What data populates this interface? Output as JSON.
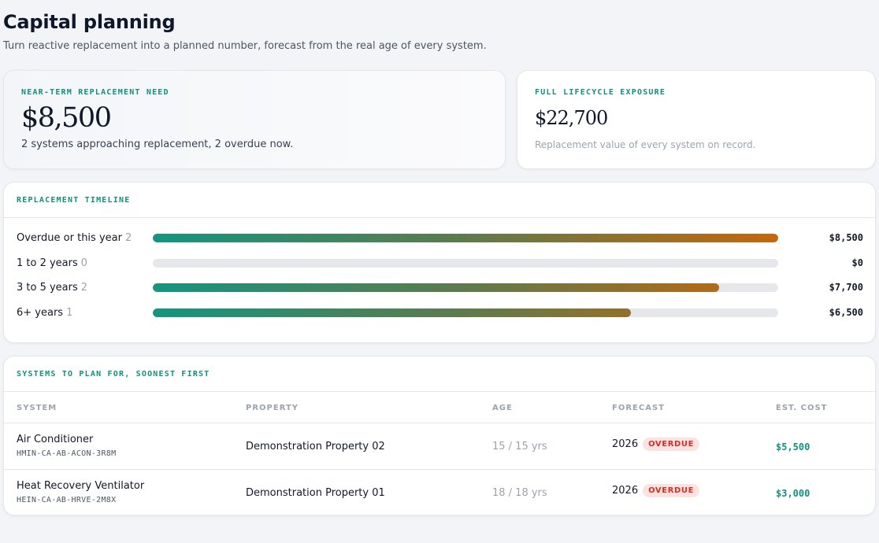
{
  "page": {
    "title": "Capital planning",
    "subtitle": "Turn reactive replacement into a planned number, forecast from the real age of every system."
  },
  "kpis": {
    "near_term": {
      "label": "NEAR-TERM REPLACEMENT NEED",
      "value": "$8,500",
      "caption": "2 systems approaching replacement, 2 overdue now."
    },
    "lifecycle": {
      "label": "FULL LIFECYCLE EXPOSURE",
      "value": "$22,700",
      "caption": "Replacement value of every system on record."
    }
  },
  "timeline": {
    "title": "REPLACEMENT TIMELINE",
    "rows": [
      {
        "label": "Overdue or this year",
        "count": "2",
        "amount": "$8,500",
        "fill_fraction": 1.0
      },
      {
        "label": "1 to 2 years",
        "count": "0",
        "amount": "$0",
        "fill_fraction": 0.0
      },
      {
        "label": "3 to 5 years",
        "count": "2",
        "amount": "$7,700",
        "fill_fraction": 0.906
      },
      {
        "label": "6+ years",
        "count": "1",
        "amount": "$6,500",
        "fill_fraction": 0.765
      }
    ]
  },
  "systems": {
    "title": "SYSTEMS TO PLAN FOR, SOONEST FIRST",
    "columns": {
      "system": "SYSTEM",
      "property": "PROPERTY",
      "age": "AGE",
      "forecast": "FORECAST",
      "cost": "EST. COST"
    },
    "rows": [
      {
        "name": "Air Conditioner",
        "code": "HMIN-CA-AB-ACON-3R8M",
        "property": "Demonstration Property 02",
        "age": "15 / 15 yrs",
        "forecast_year": "2026",
        "badge": "OVERDUE",
        "cost": "$5,500"
      },
      {
        "name": "Heat Recovery Ventilator",
        "code": "HEIN-CA-AB-HRVE-2M8X",
        "property": "Demonstration Property 01",
        "age": "18 / 18 yrs",
        "forecast_year": "2026",
        "badge": "OVERDUE",
        "cost": "$3,000"
      }
    ]
  }
}
